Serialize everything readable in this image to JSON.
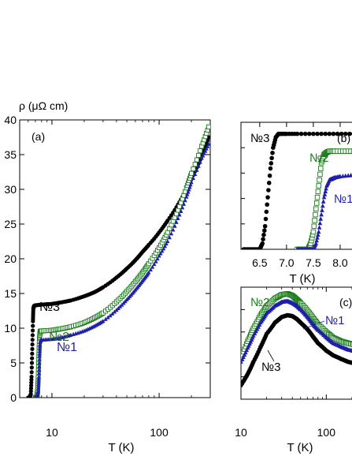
{
  "figure": {
    "ylabel": "ρ (μΩ cm)"
  },
  "chart_data": [
    {
      "panel": "a",
      "panel_label": "(a)",
      "type": "scatter",
      "x_scale": "log",
      "xlabel": "T (K)",
      "ylabel": "ρ (μΩ cm)",
      "xlim": [
        5,
        300
      ],
      "ylim": [
        0,
        40
      ],
      "xticks": [
        10,
        100
      ],
      "xtick_labels": [
        "10",
        "100"
      ],
      "yticks": [
        0,
        5,
        10,
        15,
        20,
        25,
        30,
        35,
        40
      ],
      "ytick_labels": [
        "0",
        "5",
        "10",
        "15",
        "20",
        "25",
        "30",
        "35",
        "40"
      ],
      "grid": false,
      "series": [
        {
          "name": "№3",
          "color": "#000000",
          "marker": "circle-filled",
          "x": [
            6.0,
            6.2,
            6.35,
            6.45,
            6.55,
            6.65,
            6.7,
            6.8,
            7,
            8,
            10,
            12,
            15,
            20,
            25,
            30,
            40,
            50,
            60,
            70,
            80,
            100,
            120,
            150,
            180,
            200,
            250,
            290
          ],
          "y": [
            0,
            0,
            0.5,
            3,
            7,
            11,
            12.8,
            13.2,
            13.3,
            13.4,
            13.5,
            13.7,
            14.0,
            14.6,
            15.2,
            15.9,
            17.3,
            18.6,
            19.8,
            21.0,
            22.0,
            23.8,
            25.5,
            27.8,
            30.0,
            31.5,
            34.8,
            37.5
          ]
        },
        {
          "name": "№2",
          "color": "#1a7a1a",
          "marker": "square-open",
          "x": [
            7.0,
            7.2,
            7.35,
            7.45,
            7.55,
            7.65,
            7.75,
            7.9,
            8,
            10,
            12,
            15,
            20,
            25,
            30,
            40,
            50,
            60,
            70,
            80,
            100,
            120,
            150,
            180,
            200,
            250,
            290
          ],
          "y": [
            0,
            0,
            1,
            3,
            6,
            8.5,
            9.5,
            9.6,
            9.6,
            9.7,
            9.9,
            10.2,
            10.8,
            11.5,
            12.2,
            13.8,
            15.3,
            16.7,
            18.0,
            19.3,
            21.6,
            23.8,
            27.0,
            30.2,
            32.3,
            36.2,
            39.0
          ]
        },
        {
          "name": "№1",
          "color": "#1f1fa8",
          "marker": "triangle-filled",
          "x": [
            7.0,
            7.3,
            7.45,
            7.55,
            7.65,
            7.75,
            7.9,
            8,
            10,
            12,
            15,
            20,
            25,
            30,
            40,
            50,
            60,
            70,
            80,
            100,
            120,
            150,
            180,
            200,
            250,
            290
          ],
          "y": [
            0,
            0,
            1,
            3,
            6,
            8.0,
            8.3,
            8.3,
            8.4,
            8.6,
            9.0,
            9.6,
            10.3,
            11.0,
            12.6,
            14.1,
            15.5,
            16.8,
            18.0,
            20.4,
            22.5,
            25.8,
            28.9,
            31.0,
            34.5,
            36.5
          ]
        }
      ]
    },
    {
      "panel": "b",
      "panel_label": "(b)",
      "type": "scatter",
      "xlabel": "T (K)",
      "xlim": [
        6.15,
        8.5
      ],
      "ylim": [
        0,
        1.1
      ],
      "xticks": [
        6.5,
        7.0,
        7.5,
        8.0
      ],
      "xtick_labels": [
        "6.5",
        "7.0",
        "7.5",
        "8.0"
      ],
      "grid": false,
      "series": [
        {
          "name": "№3",
          "color": "#000000",
          "marker": "circle-filled",
          "x": [
            6.2,
            6.3,
            6.4,
            6.5,
            6.55,
            6.6,
            6.65,
            6.7,
            6.75,
            6.8,
            6.85,
            6.9,
            7.0,
            7.2,
            7.5,
            7.8,
            8.1,
            8.4
          ],
          "y": [
            0,
            0,
            0,
            0,
            0.05,
            0.2,
            0.45,
            0.7,
            0.88,
            0.97,
            1.0,
            1.0,
            1.0,
            1.0,
            1.0,
            1.0,
            1.0,
            1.0
          ]
        },
        {
          "name": "№2",
          "color": "#1a7a1a",
          "marker": "square-open",
          "x": [
            7.2,
            7.3,
            7.4,
            7.45,
            7.5,
            7.55,
            7.6,
            7.65,
            7.7,
            7.75,
            7.8,
            7.9,
            8.1,
            8.3,
            8.5
          ],
          "y": [
            0,
            0,
            0,
            0.05,
            0.15,
            0.35,
            0.55,
            0.75,
            0.82,
            0.84,
            0.85,
            0.85,
            0.85,
            0.85,
            0.85
          ]
        },
        {
          "name": "№1",
          "color": "#1f1fa8",
          "marker": "triangle-filled",
          "x": [
            7.2,
            7.3,
            7.4,
            7.5,
            7.55,
            7.6,
            7.65,
            7.7,
            7.75,
            7.8,
            7.85,
            7.9,
            8.0,
            8.2,
            8.5
          ],
          "y": [
            0,
            0,
            0,
            0,
            0.05,
            0.15,
            0.3,
            0.45,
            0.55,
            0.6,
            0.61,
            0.62,
            0.63,
            0.64,
            0.65
          ]
        }
      ]
    },
    {
      "panel": "c",
      "panel_label": "(c)",
      "type": "scatter",
      "x_scale": "log",
      "xlabel": "T (K)",
      "xlim": [
        10,
        300
      ],
      "ylim": [
        0,
        1.2
      ],
      "xticks": [
        10,
        100
      ],
      "xtick_labels": [
        "10",
        "100"
      ],
      "grid": false,
      "series": [
        {
          "name": "№2",
          "color": "#1a7a1a",
          "marker": "square-open",
          "x": [
            10,
            12,
            14,
            17,
            20,
            25,
            30,
            35,
            40,
            45,
            50,
            60,
            70,
            80,
            100,
            120,
            150,
            180,
            220
          ],
          "y": [
            0.45,
            0.62,
            0.76,
            0.9,
            1.0,
            1.08,
            1.12,
            1.13,
            1.11,
            1.07,
            1.03,
            0.95,
            0.87,
            0.8,
            0.72,
            0.66,
            0.62,
            0.6,
            0.58
          ]
        },
        {
          "name": "№1",
          "color": "#1f1fa8",
          "marker": "triangle-filled",
          "x": [
            10,
            12,
            14,
            17,
            20,
            25,
            30,
            35,
            40,
            45,
            50,
            60,
            70,
            80,
            100,
            120,
            150,
            180,
            220
          ],
          "y": [
            0.4,
            0.55,
            0.68,
            0.82,
            0.92,
            1.0,
            1.04,
            1.05,
            1.03,
            1.0,
            0.96,
            0.88,
            0.8,
            0.74,
            0.66,
            0.6,
            0.56,
            0.53,
            0.51
          ]
        },
        {
          "name": "№3",
          "color": "#000000",
          "marker": "circle-filled",
          "x": [
            10,
            12,
            14,
            17,
            20,
            25,
            30,
            35,
            40,
            45,
            50,
            60,
            70,
            80,
            100,
            120,
            150,
            180,
            220
          ],
          "y": [
            0.15,
            0.27,
            0.4,
            0.56,
            0.7,
            0.82,
            0.88,
            0.9,
            0.89,
            0.86,
            0.82,
            0.75,
            0.67,
            0.6,
            0.52,
            0.47,
            0.43,
            0.4,
            0.38
          ]
        }
      ]
    }
  ]
}
